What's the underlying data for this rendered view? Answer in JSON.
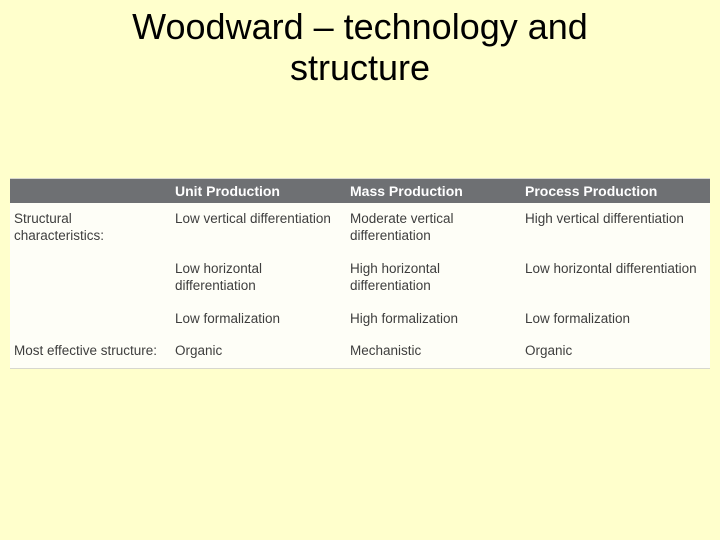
{
  "title_line1": "Woodward – technology and",
  "title_line2": "structure",
  "table": {
    "background_color": "#fefef7",
    "header_bg": "#6e7073",
    "header_text_color": "#ffffff",
    "body_text_color": "#3e3e3e",
    "rule_color": "#d7d7cf",
    "font_size_header": 14,
    "font_size_body": 13.5,
    "col_widths_pct": [
      23,
      25,
      25,
      27
    ],
    "columns": [
      "",
      "Unit Production",
      "Mass Production",
      "Process Production"
    ],
    "rows": [
      {
        "label": "Structural characteristics:",
        "cells": [
          [
            "Low vertical differentiation",
            "Low horizontal differentiation",
            "Low formalization"
          ],
          [
            "Moderate vertical differentiation",
            "High horizontal differentiation",
            "High formalization"
          ],
          [
            "High vertical differentiation",
            "Low horizontal differentiation",
            "Low formalization"
          ]
        ]
      },
      {
        "label": "Most effective structure:",
        "cells": [
          [
            "Organic"
          ],
          [
            "Mechanistic"
          ],
          [
            "Organic"
          ]
        ]
      }
    ]
  },
  "slide_bg": "#ffffcc"
}
